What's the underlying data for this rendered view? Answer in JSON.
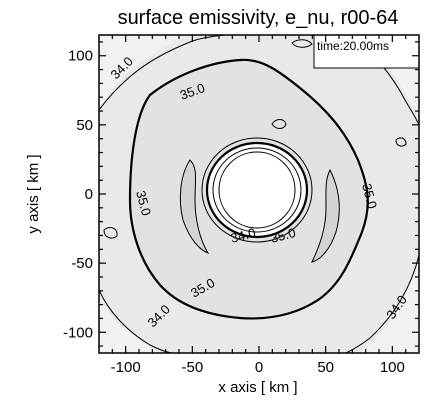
{
  "chart_data": {
    "type": "contour",
    "title": "surface emissivity, e_nu, r00-64",
    "xlabel": "x axis [ km ]",
    "ylabel": "y axis [ km ]",
    "xlim": [
      -120,
      120
    ],
    "ylim": [
      -115,
      115
    ],
    "xticks": [
      -100,
      -50,
      0,
      50,
      100
    ],
    "yticks": [
      -100,
      -50,
      0,
      50,
      100
    ],
    "time_label": "time:20.00ms",
    "contour_labels": [
      "34.0",
      "35.0",
      "35.0",
      "34.0",
      "35.0",
      "35.0",
      "34.0",
      "35.0",
      "34.0"
    ],
    "levels": [
      34.0,
      35.0
    ],
    "colors": {
      "background": "#e9e9e9",
      "high_region": "#e2e2e2",
      "low_region": "#f2f2f2",
      "inner_band": "#d4d4d4",
      "hole": "#ffffff",
      "lines": "#000000"
    }
  }
}
